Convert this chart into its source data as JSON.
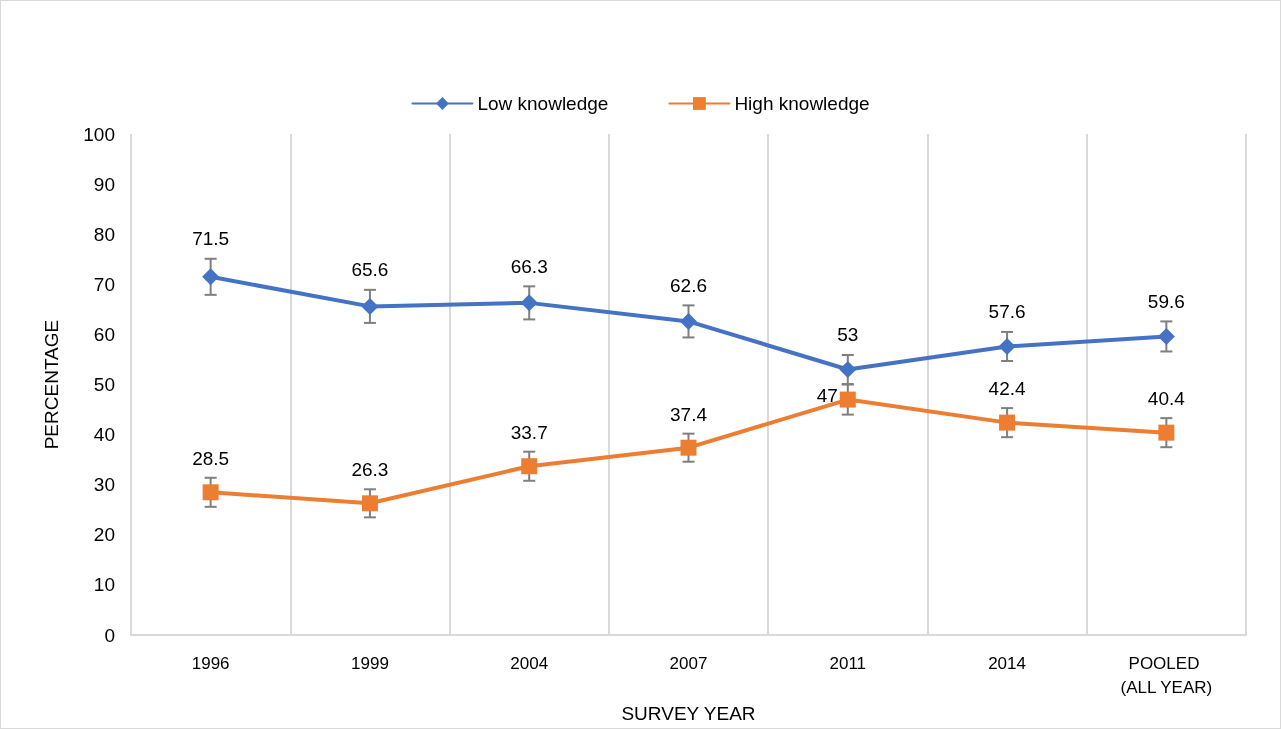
{
  "chart_data": {
    "type": "line",
    "xlabel": "SURVEY YEAR",
    "ylabel": "PERCENTAGE",
    "categories": [
      "1996",
      "1999",
      "2004",
      "2007",
      "2011",
      "2014",
      "POOLED (ALL YEAR)"
    ],
    "series": [
      {
        "name": "Low knowledge",
        "color": "#4472c4",
        "marker": "diamond",
        "values": [
          71.5,
          65.6,
          66.3,
          62.6,
          53,
          57.6,
          59.6
        ],
        "errors": [
          3.6,
          3.3,
          3.3,
          3.2,
          2.9,
          2.9,
          3.0
        ]
      },
      {
        "name": "High knowledge",
        "color": "#ed7d31",
        "marker": "square",
        "values": [
          28.5,
          26.3,
          33.7,
          37.4,
          47,
          42.4,
          40.4
        ],
        "errors": [
          2.9,
          2.8,
          2.9,
          2.8,
          3.0,
          2.9,
          2.9
        ]
      }
    ],
    "ylim": [
      0,
      100
    ],
    "yticks": [
      0,
      10,
      20,
      30,
      40,
      50,
      60,
      70,
      80,
      90,
      100
    ],
    "grid": "x",
    "legend": "top",
    "data_labels": true,
    "line_style": "solid"
  }
}
